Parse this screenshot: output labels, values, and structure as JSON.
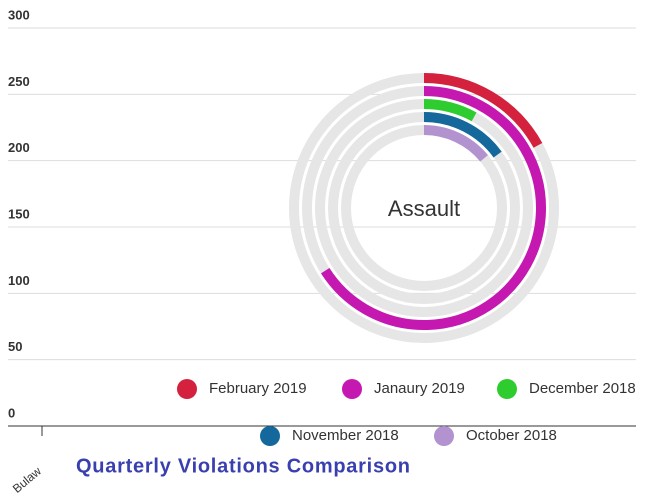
{
  "chart_data": [
    {
      "type": "bar",
      "categories": [
        "Bulaw"
      ],
      "ylim": [
        0,
        300
      ],
      "yticks": [
        0,
        50,
        100,
        150,
        200,
        250,
        300
      ],
      "grid": true
    },
    {
      "type": "radialBar",
      "title": "Quarterly Violations Comparison",
      "label": "Assault",
      "radial_lim": [
        0,
        100
      ],
      "track_color": "#e6e6e6",
      "series": [
        {
          "name": "February 2019",
          "color": "#d4213d",
          "values": [
            17
          ]
        },
        {
          "name": "Janaury 2019",
          "color": "#c418b0",
          "values": [
            66
          ]
        },
        {
          "name": "December 2018",
          "color": "#2fcc2f",
          "values": [
            8
          ]
        },
        {
          "name": "November 2018",
          "color": "#15689c",
          "values": [
            15
          ]
        },
        {
          "name": "October 2018",
          "color": "#b292cf",
          "values": [
            14
          ]
        }
      ],
      "legend": "bottom"
    }
  ]
}
